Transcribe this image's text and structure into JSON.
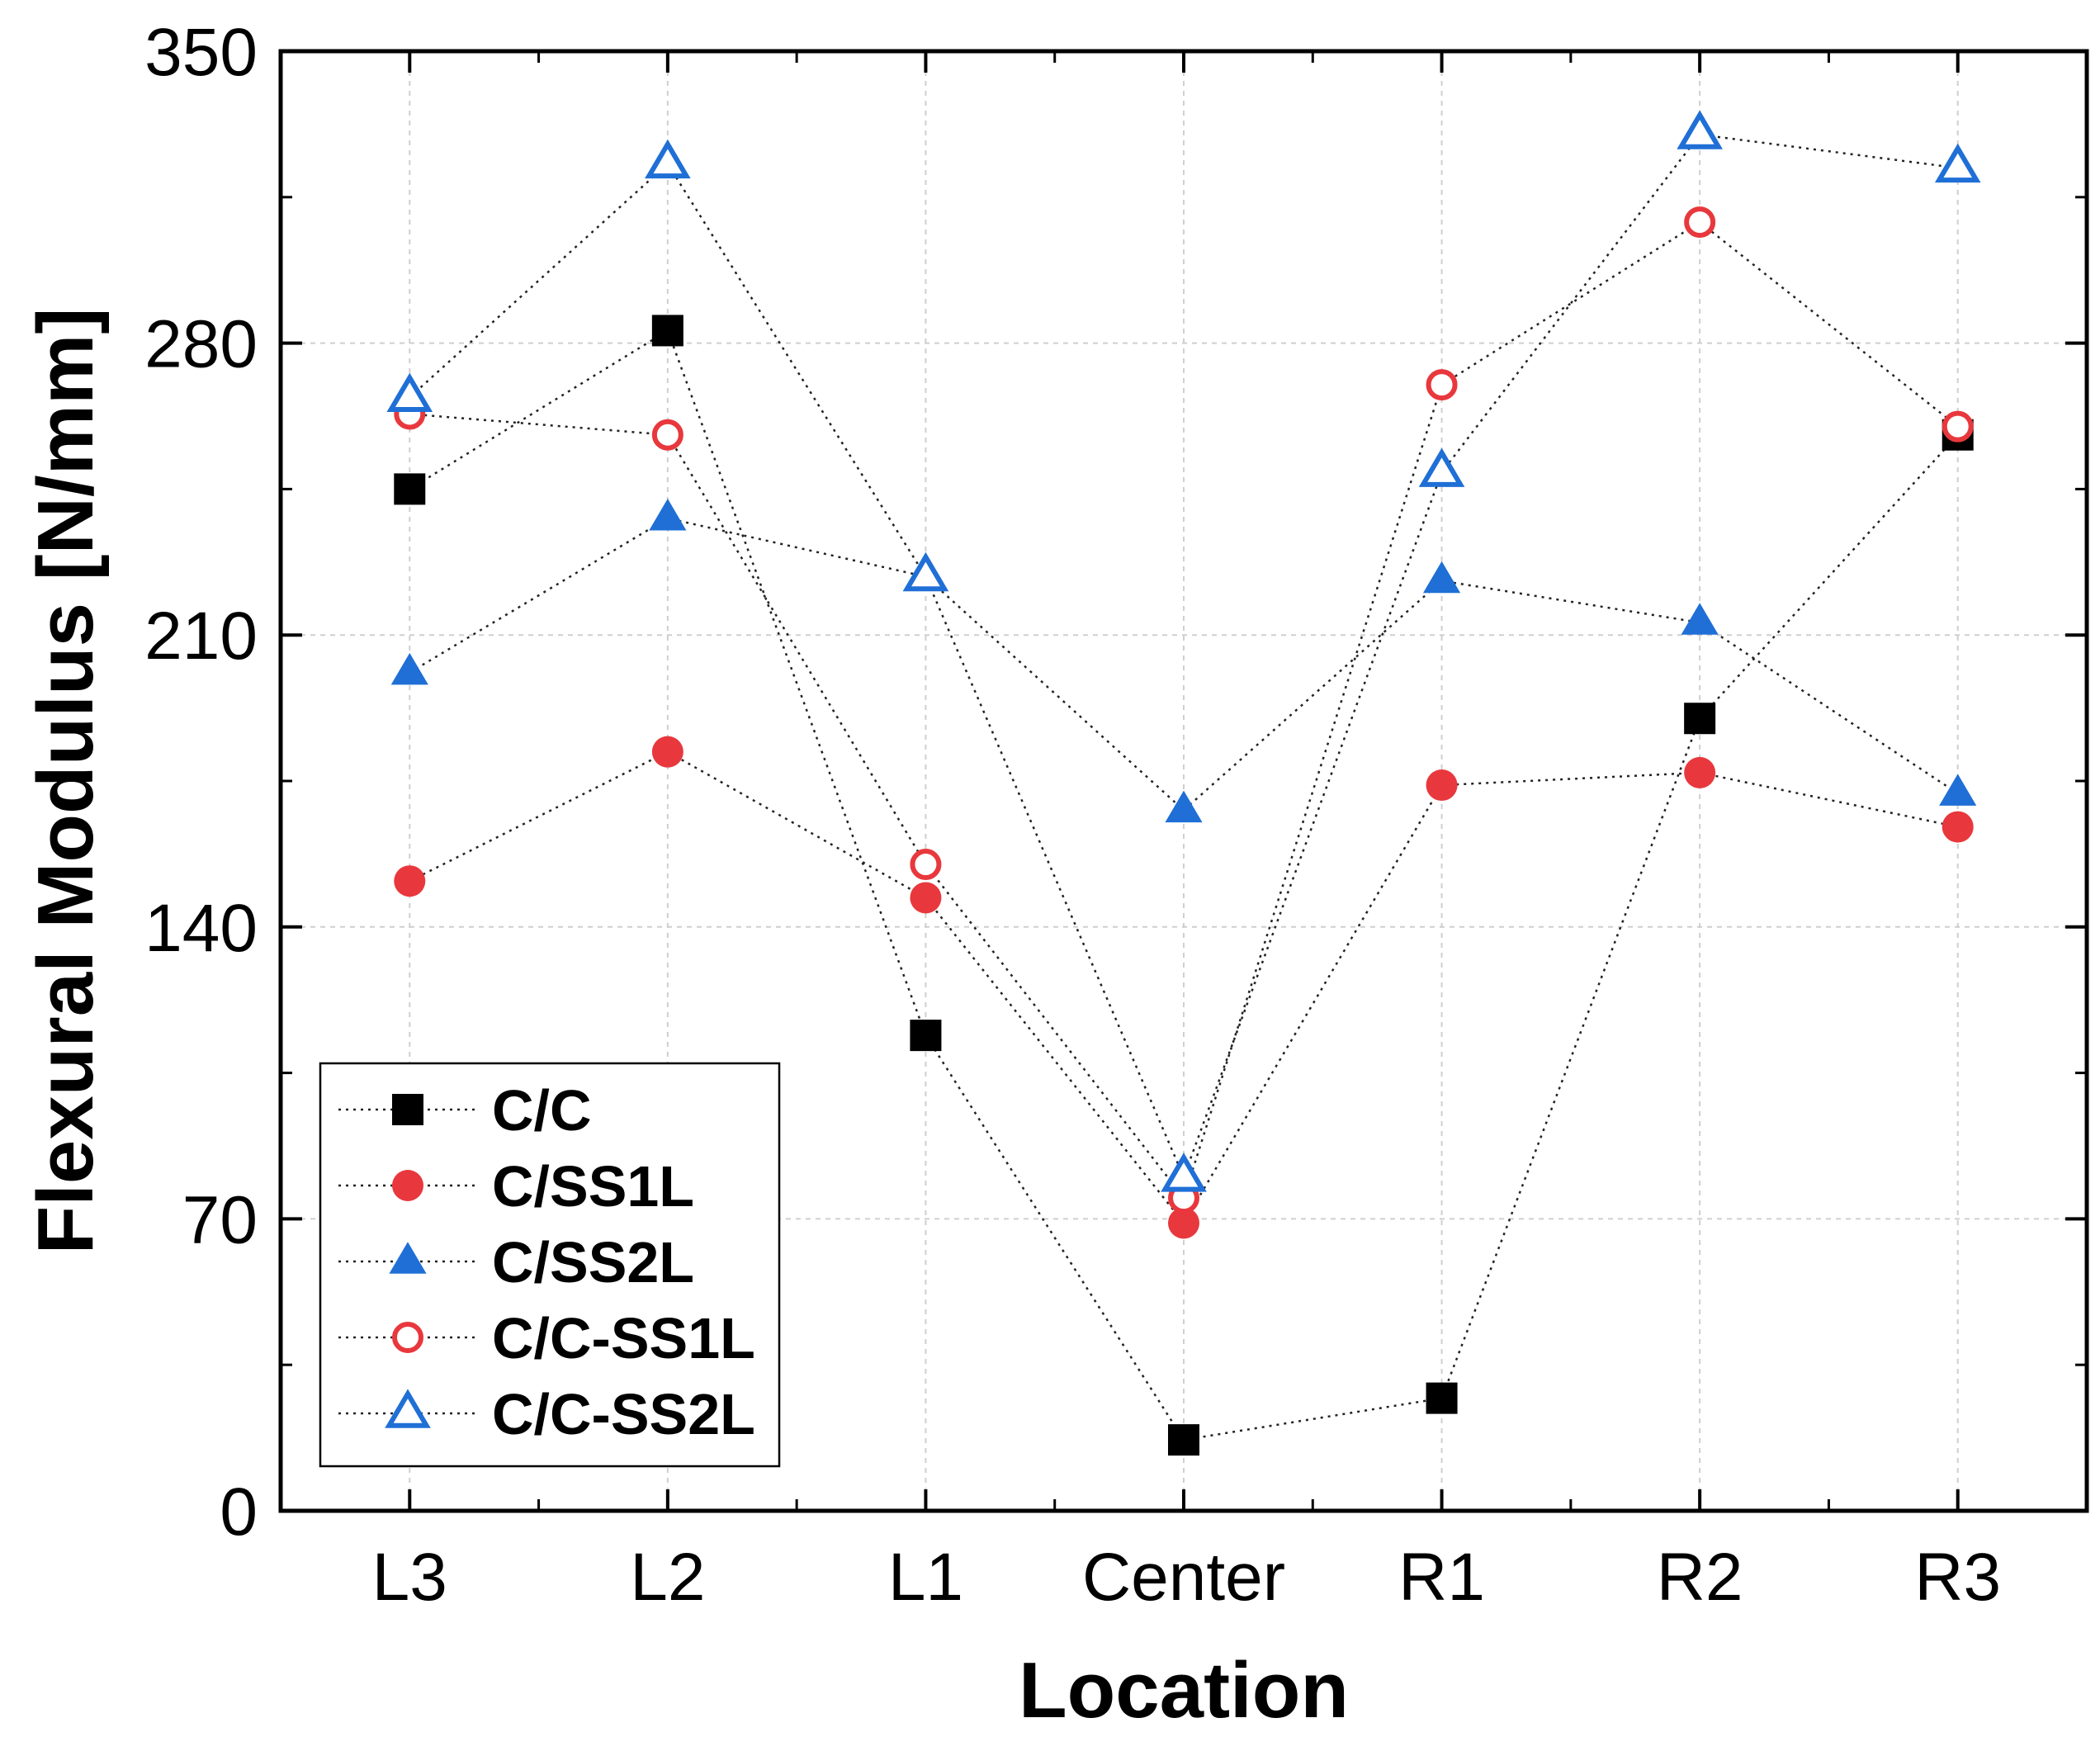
{
  "chart_data": {
    "type": "scatter",
    "categories": [
      "L3",
      "L2",
      "L1",
      "Center",
      "R1",
      "R2",
      "R3"
    ],
    "xlabel": "Location",
    "ylabel": "Flexural Modulus [N/mm]",
    "ylim": [
      0,
      350
    ],
    "yticks": [
      0,
      70,
      140,
      210,
      280,
      350
    ],
    "grid": true,
    "legend_position": "bottom-left",
    "series": [
      {
        "name": "C/C",
        "marker": "square",
        "filled": true,
        "color": "#000000",
        "values": [
          245,
          283,
          114,
          17,
          27,
          190,
          258
        ]
      },
      {
        "name": "C/SS1L",
        "marker": "circle",
        "filled": true,
        "color": "#e8383d",
        "values": [
          151,
          182,
          147,
          69,
          174,
          177,
          164
        ]
      },
      {
        "name": "C/SS2L",
        "marker": "triangle",
        "filled": true,
        "color": "#1f6fd6",
        "values": [
          201,
          238,
          224,
          168,
          223,
          213,
          172
        ]
      },
      {
        "name": "C/C-SS1L",
        "marker": "circle",
        "filled": false,
        "color": "#e8383d",
        "values": [
          263,
          258,
          155,
          75,
          270,
          309,
          260
        ]
      },
      {
        "name": "C/C-SS2L",
        "marker": "triangle",
        "filled": false,
        "color": "#1f6fd6",
        "values": [
          267,
          323,
          224,
          80,
          249,
          330,
          322
        ]
      }
    ]
  }
}
